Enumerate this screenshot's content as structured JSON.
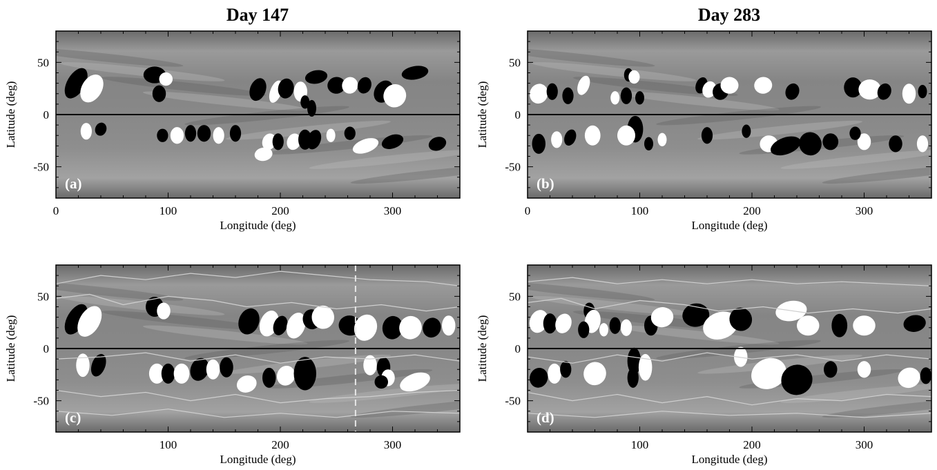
{
  "columns": [
    {
      "title": "Day 147"
    },
    {
      "title": "Day 283"
    }
  ],
  "panel_labels": [
    "(a)",
    "(b)",
    "(c)",
    "(d)"
  ],
  "chart_data": [
    {
      "type": "heatmap",
      "panel": "(a)",
      "column": "Day 147",
      "xlabel": "Longitude (deg)",
      "ylabel": "Latitude (deg)",
      "xlim": [
        0,
        360
      ],
      "ylim": [
        -80,
        80
      ],
      "xticks": [
        "0",
        "100",
        "200",
        "300"
      ],
      "yticks": [
        "50",
        "0",
        "-50"
      ],
      "equator_line": true
    },
    {
      "type": "heatmap",
      "panel": "(b)",
      "column": "Day 283",
      "xlabel": "Longitude (deg)",
      "ylabel": "Latitude (deg)",
      "xlim": [
        0,
        360
      ],
      "ylim": [
        -80,
        80
      ],
      "xticks": [
        "0",
        "100",
        "200",
        "300"
      ],
      "yticks": [
        "50",
        "0",
        "-50"
      ],
      "equator_line": true
    },
    {
      "type": "heatmap",
      "panel": "(c)",
      "column": "Day 147",
      "xlabel": "Longitude (deg)",
      "ylabel": "Latitude (deg)",
      "xlim": [
        0,
        360
      ],
      "ylim": [
        -80,
        80
      ],
      "xticks": [
        "100",
        "200",
        "300"
      ],
      "yticks": [
        "50",
        "0",
        "-50"
      ],
      "equator_line": true,
      "contours": true,
      "dashed_vertical_line_longitude": 267
    },
    {
      "type": "heatmap",
      "panel": "(d)",
      "column": "Day 283",
      "xlabel": "Longitude (deg)",
      "ylabel": "Latitude (deg)",
      "xlim": [
        0,
        360
      ],
      "ylim": [
        -80,
        80
      ],
      "xticks": [
        "100",
        "200",
        "300"
      ],
      "yticks": [
        "50",
        "0",
        "-50"
      ],
      "equator_line": true,
      "contours": true
    }
  ],
  "colors": {
    "background_gray": "#8a8a8a",
    "contour": "#cfcfcf",
    "positive": "#ffffff",
    "negative": "#000000"
  }
}
